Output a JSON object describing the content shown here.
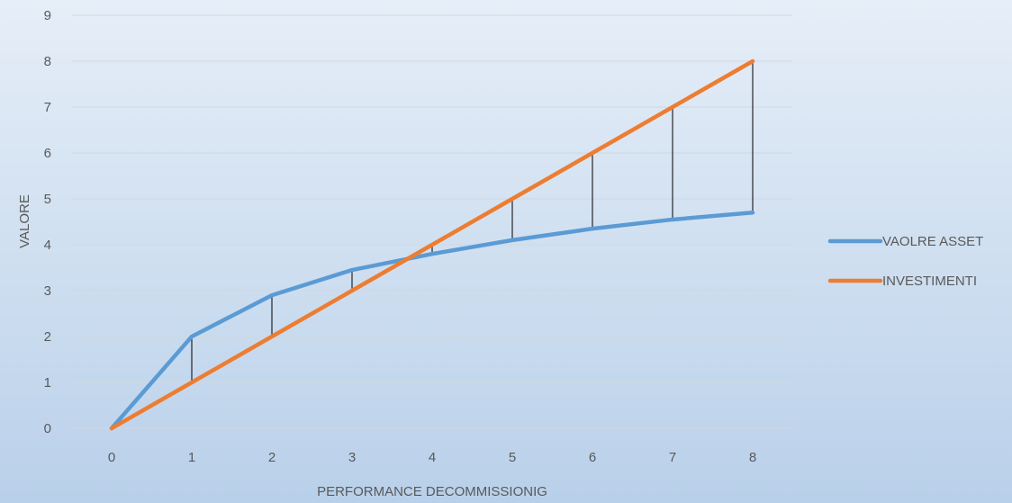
{
  "chart_data": {
    "type": "line",
    "title": "",
    "xlabel": "PERFORMANCE  DECOMMISSIONIG",
    "ylabel": "VALORE",
    "x": [
      0,
      1,
      2,
      3,
      4,
      5,
      6,
      7,
      8
    ],
    "xlim": [
      0,
      8
    ],
    "ylim": [
      0,
      9
    ],
    "y_ticks": [
      0,
      1,
      2,
      3,
      4,
      5,
      6,
      7,
      8,
      9
    ],
    "grid": "horizontal",
    "legend_position": "right",
    "series": [
      {
        "name": "VAOLRE ASSET",
        "color": "#5b9bd5",
        "values": [
          0,
          2,
          2.9,
          3.45,
          3.8,
          4.1,
          4.35,
          4.55,
          4.7
        ]
      },
      {
        "name": "INVESTIMENTI",
        "color": "#ed7d31",
        "values": [
          0,
          1,
          2,
          3,
          4,
          5,
          6,
          7,
          8
        ]
      }
    ],
    "drop_lines": {
      "color": "#000000",
      "between_series": [
        "VAOLRE ASSET",
        "INVESTIMENTI"
      ],
      "x": [
        0,
        1,
        2,
        3,
        4,
        5,
        6,
        7,
        8
      ]
    }
  }
}
